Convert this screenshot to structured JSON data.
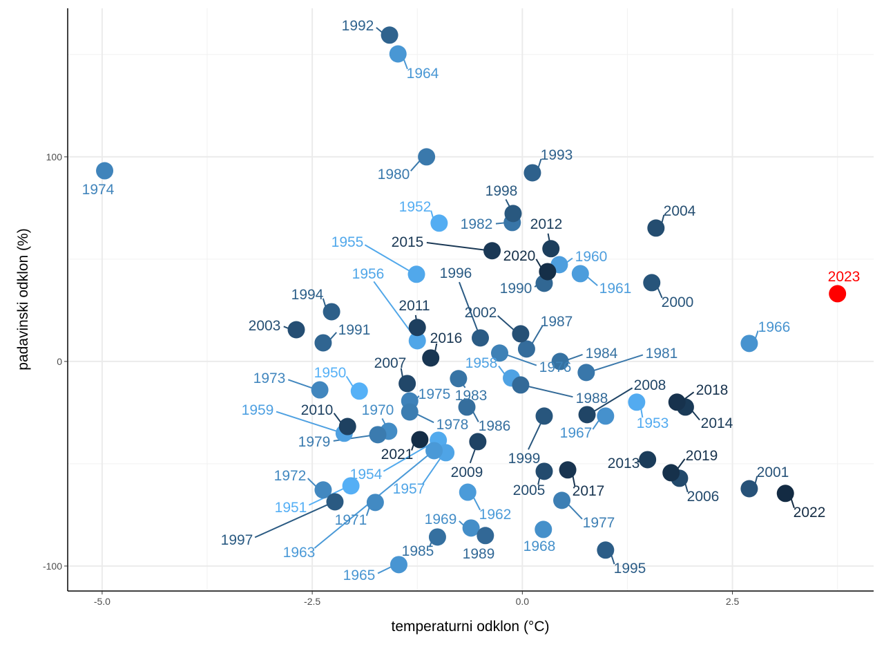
{
  "chart_data": {
    "type": "scatter",
    "xlabel": "temperaturni odklon (°C)",
    "ylabel": "padavinski odklon (%)",
    "xlim": [
      -5.41,
      4.18
    ],
    "ylim": [
      -112.2,
      172.6
    ],
    "xticks": [
      -5.0,
      -2.5,
      0.0,
      2.5
    ],
    "xtick_labels": [
      "-5.0",
      "-2.5",
      "0.0",
      "2.5"
    ],
    "yticks": [
      100,
      0,
      -100
    ],
    "ytick_labels": [
      "100",
      "0",
      "-100"
    ],
    "grid": true,
    "color_scale": {
      "low": "#56B1F7",
      "high": "#132B43",
      "low_year": 1950,
      "high_year": 2022,
      "highlight": "#FF0000",
      "highlight_year": 2023
    },
    "points": [
      {
        "year": "1950",
        "x": -1.94,
        "y": -14.5
      },
      {
        "year": "1951",
        "x": -2.04,
        "y": -60.8
      },
      {
        "year": "1952",
        "x": -0.99,
        "y": 67.6
      },
      {
        "year": "1953",
        "x": 1.36,
        "y": -19.9
      },
      {
        "year": "1954",
        "x": -1.0,
        "y": -38.5
      },
      {
        "year": "1955",
        "x": -1.26,
        "y": 42.6
      },
      {
        "year": "1956",
        "x": -1.25,
        "y": 10.1
      },
      {
        "year": "1957",
        "x": -0.91,
        "y": -44.6
      },
      {
        "year": "1958",
        "x": -0.13,
        "y": -8.1
      },
      {
        "year": "1959",
        "x": -2.12,
        "y": -35.1
      },
      {
        "year": "1960",
        "x": 0.44,
        "y": 47.3
      },
      {
        "year": "1961",
        "x": 0.69,
        "y": 42.9
      },
      {
        "year": "1962",
        "x": -0.65,
        "y": -63.9
      },
      {
        "year": "1963",
        "x": -1.05,
        "y": -43.6
      },
      {
        "year": "1964",
        "x": -1.48,
        "y": 150.3
      },
      {
        "year": "1965",
        "x": -1.47,
        "y": -99.3
      },
      {
        "year": "1966",
        "x": 2.7,
        "y": 8.8
      },
      {
        "year": "1967",
        "x": 0.99,
        "y": -26.7
      },
      {
        "year": "1968",
        "x": 0.25,
        "y": -82.1
      },
      {
        "year": "1969",
        "x": -0.61,
        "y": -81.4
      },
      {
        "year": "1970",
        "x": -1.59,
        "y": -34.1
      },
      {
        "year": "1971",
        "x": -1.75,
        "y": -68.9
      },
      {
        "year": "1972",
        "x": -2.37,
        "y": -62.8
      },
      {
        "year": "1973",
        "x": -2.41,
        "y": -13.9
      },
      {
        "year": "1974",
        "x": -4.97,
        "y": 93.2
      },
      {
        "year": "1975",
        "x": -1.34,
        "y": -19.3
      },
      {
        "year": "1976",
        "x": -0.27,
        "y": 4.1
      },
      {
        "year": "1977",
        "x": 0.47,
        "y": -67.9
      },
      {
        "year": "1978",
        "x": -1.34,
        "y": -24.7
      },
      {
        "year": "1979",
        "x": -1.72,
        "y": -35.8
      },
      {
        "year": "1980",
        "x": -1.14,
        "y": 100.0
      },
      {
        "year": "1981",
        "x": 0.76,
        "y": -5.4
      },
      {
        "year": "1982",
        "x": -0.12,
        "y": 67.9
      },
      {
        "year": "1983",
        "x": -0.76,
        "y": -8.4
      },
      {
        "year": "1984",
        "x": 0.45,
        "y": 0.0
      },
      {
        "year": "1985",
        "x": -1.01,
        "y": -85.8
      },
      {
        "year": "1986",
        "x": -0.66,
        "y": -22.3
      },
      {
        "year": "1987",
        "x": 0.05,
        "y": 6.1
      },
      {
        "year": "1988",
        "x": -0.02,
        "y": -11.5
      },
      {
        "year": "1989",
        "x": -0.44,
        "y": -85.1
      },
      {
        "year": "1990",
        "x": 0.26,
        "y": 38.2
      },
      {
        "year": "1991",
        "x": -2.37,
        "y": 9.1
      },
      {
        "year": "1992",
        "x": -1.58,
        "y": 159.5
      },
      {
        "year": "1993",
        "x": 0.12,
        "y": 92.2
      },
      {
        "year": "1994",
        "x": -2.27,
        "y": 24.3
      },
      {
        "year": "1995",
        "x": 0.99,
        "y": -92.2
      },
      {
        "year": "1996",
        "x": -0.5,
        "y": 11.5
      },
      {
        "year": "1997",
        "x": -2.23,
        "y": -68.6
      },
      {
        "year": "1998",
        "x": -0.11,
        "y": 72.3
      },
      {
        "year": "1999",
        "x": 0.26,
        "y": -26.7
      },
      {
        "year": "2000",
        "x": 1.54,
        "y": 38.5
      },
      {
        "year": "2001",
        "x": 2.7,
        "y": -62.2
      },
      {
        "year": "2002",
        "x": -0.02,
        "y": 13.5
      },
      {
        "year": "2003",
        "x": -2.69,
        "y": 15.5
      },
      {
        "year": "2004",
        "x": 1.59,
        "y": 65.2
      },
      {
        "year": "2005",
        "x": 0.26,
        "y": -53.7
      },
      {
        "year": "2006",
        "x": 1.87,
        "y": -57.1
      },
      {
        "year": "2007",
        "x": -1.37,
        "y": -10.8
      },
      {
        "year": "2008",
        "x": 0.77,
        "y": -26.0
      },
      {
        "year": "2009",
        "x": -0.53,
        "y": -39.2
      },
      {
        "year": "2010",
        "x": -2.08,
        "y": -31.8
      },
      {
        "year": "2011",
        "x": -1.25,
        "y": 16.6
      },
      {
        "year": "2012",
        "x": 0.34,
        "y": 55.1
      },
      {
        "year": "2013",
        "x": 1.49,
        "y": -48.0
      },
      {
        "year": "2014",
        "x": 1.94,
        "y": -22.3
      },
      {
        "year": "2015",
        "x": -0.36,
        "y": 54.1
      },
      {
        "year": "2016",
        "x": -1.09,
        "y": 1.7
      },
      {
        "year": "2017",
        "x": 0.54,
        "y": -53.0
      },
      {
        "year": "2018",
        "x": 1.84,
        "y": -19.9
      },
      {
        "year": "2019",
        "x": 1.77,
        "y": -54.4
      },
      {
        "year": "2020",
        "x": 0.3,
        "y": 43.9
      },
      {
        "year": "2021",
        "x": -1.22,
        "y": -38.2
      },
      {
        "year": "2022",
        "x": 3.13,
        "y": -64.5
      },
      {
        "year": "2023",
        "x": 3.75,
        "y": 33.1
      }
    ]
  }
}
